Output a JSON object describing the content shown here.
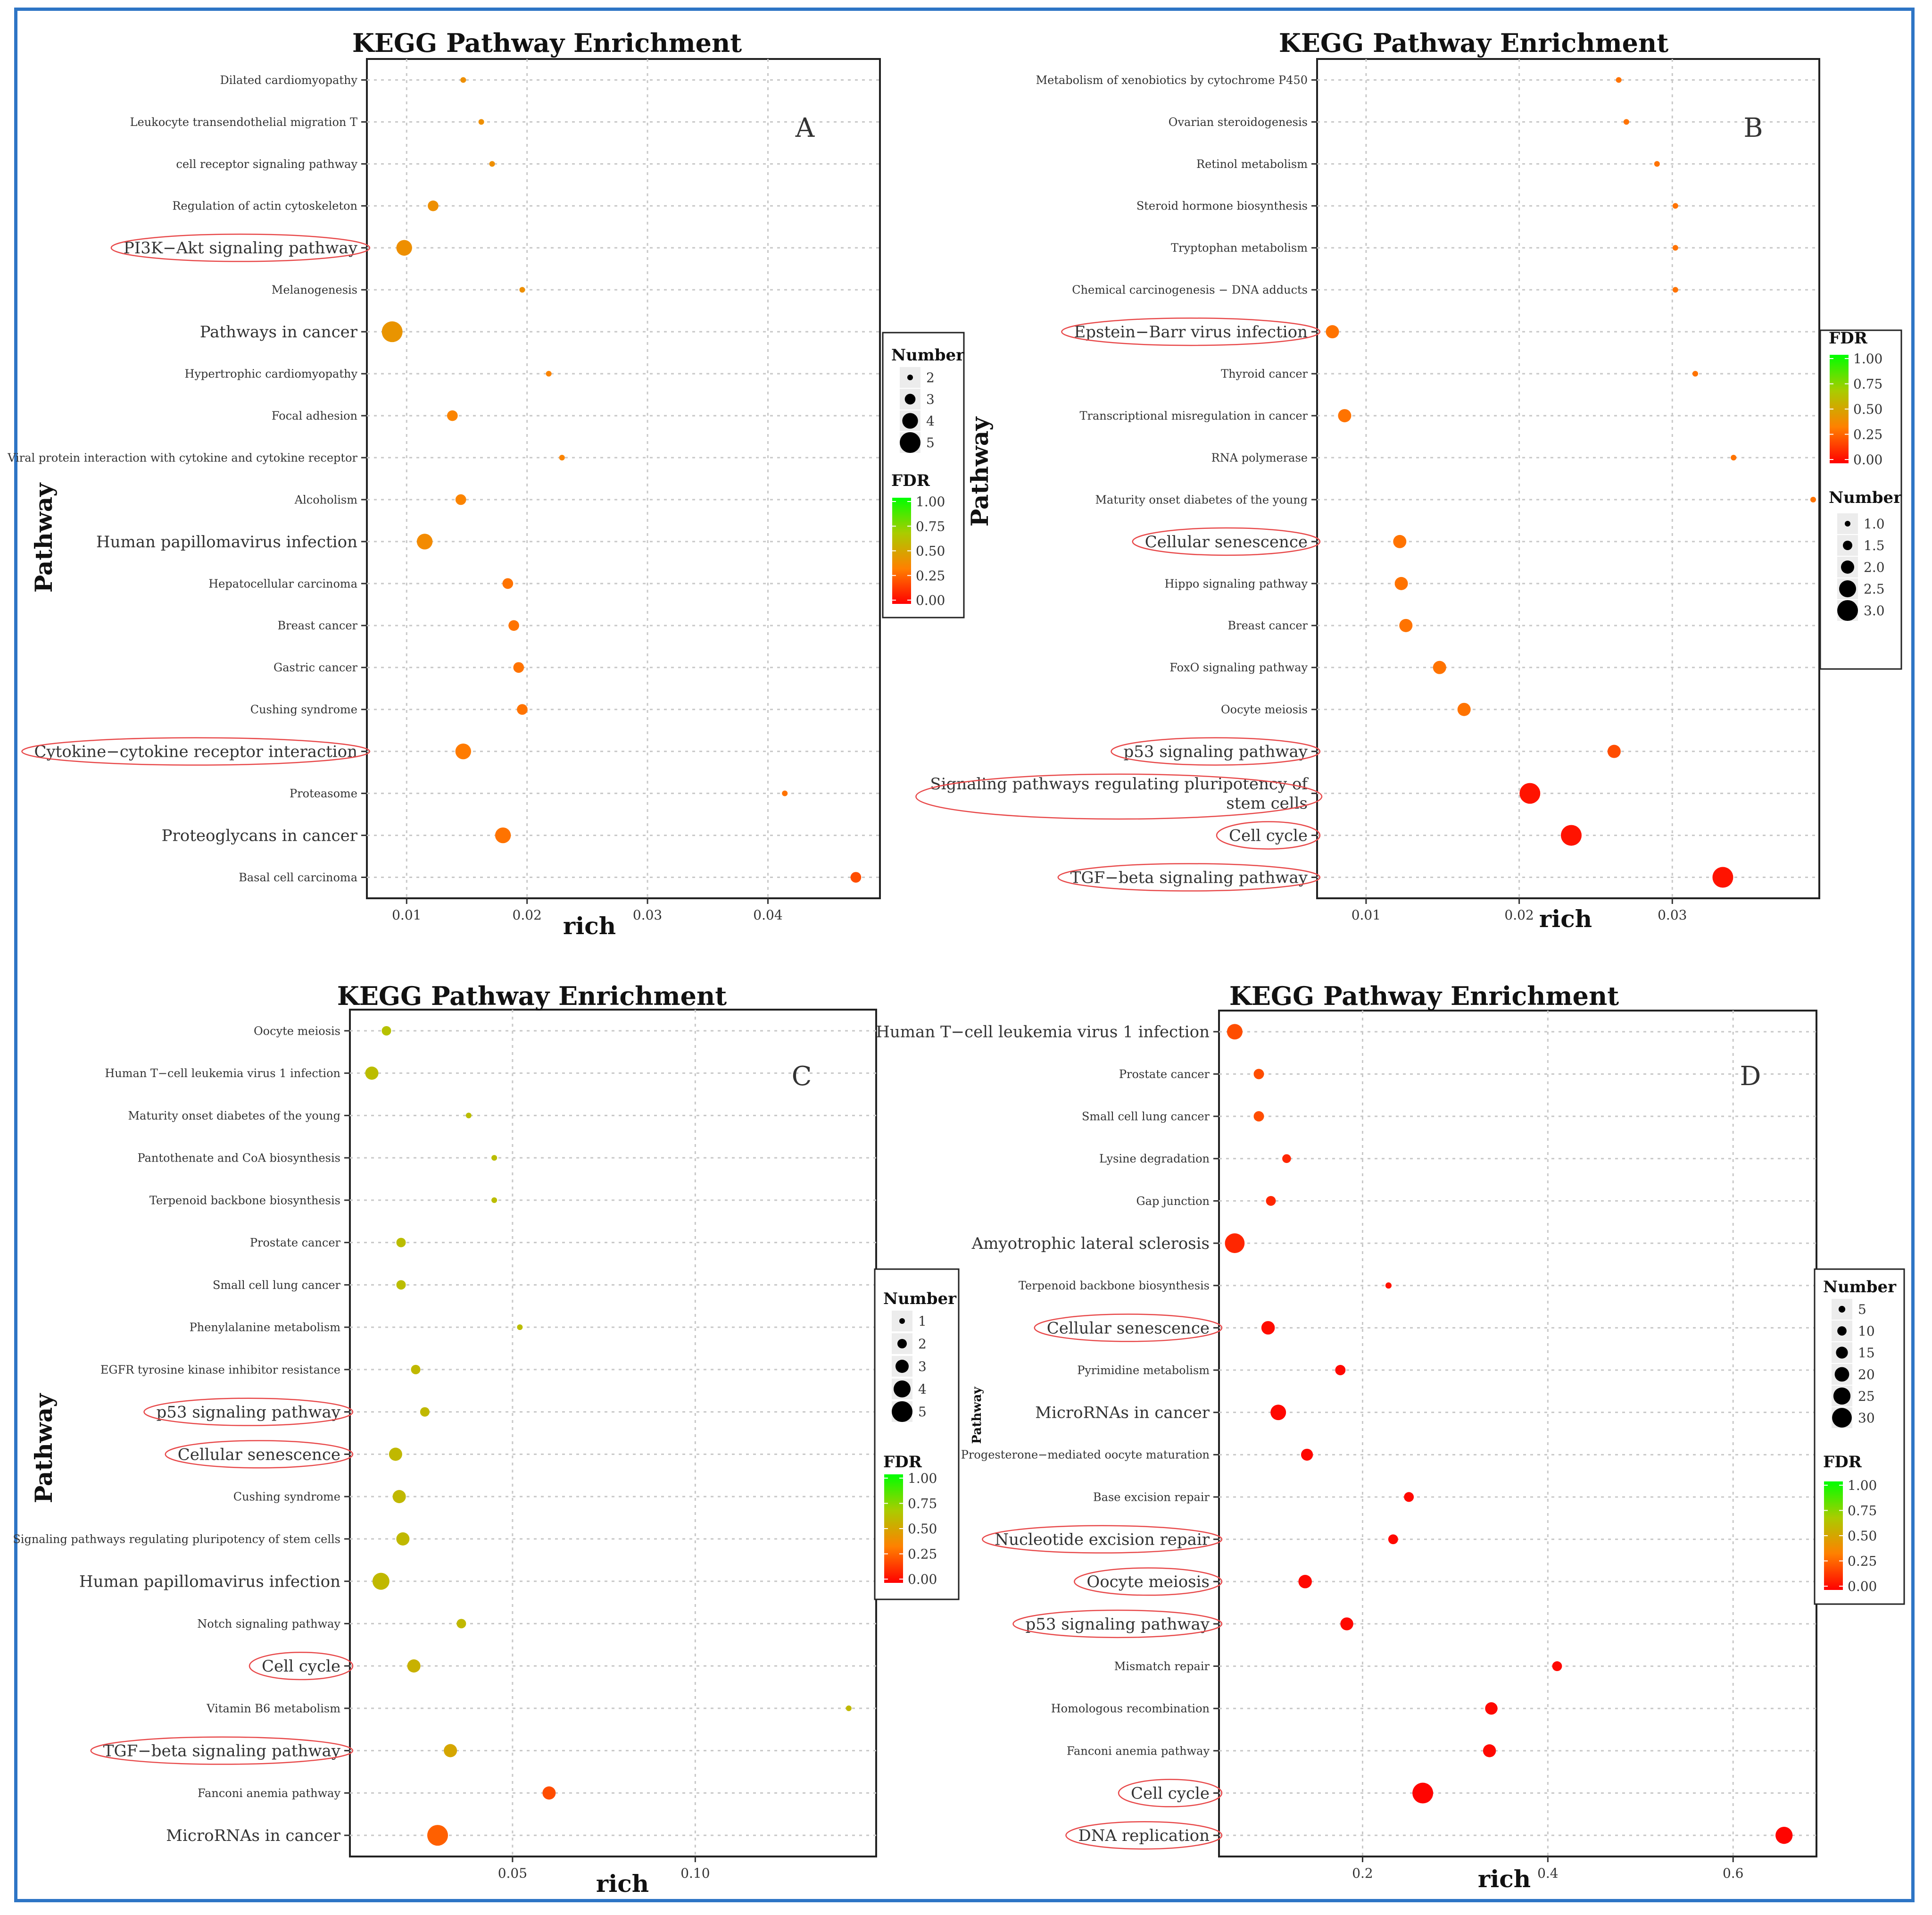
{
  "figure": {
    "border_color": "#2e75c5",
    "dot_color_scale": [
      "#ff0000",
      "#ff8000",
      "#aacc00",
      "#00ff00"
    ]
  },
  "chart_data": [
    {
      "type": "scatter",
      "panel_letter": "A",
      "title": "KEGG Pathway Enrichment",
      "xlabel": "rich",
      "ylabel": "Pathway",
      "xlim": [
        0.0067,
        0.0493
      ],
      "xticks": [
        0.01,
        0.02,
        0.03,
        0.04
      ],
      "xtick_labels": [
        "0.01",
        "0.02",
        "0.03",
        "0.04"
      ],
      "size_legend_title": "Number",
      "size_legend_values": [
        2,
        3,
        4,
        5
      ],
      "size_legend_labels": [
        "2",
        "3",
        "4",
        "5"
      ],
      "fdr_legend_title": "FDR",
      "fdr_legend_labels": [
        "1.00",
        "0.75",
        "0.50",
        "0.25",
        "0.00"
      ],
      "size_range": [
        2,
        5
      ],
      "circled": [
        "PI3K−Akt signaling pathway",
        "Cytokine−cytokine receptor interaction"
      ],
      "points": [
        {
          "pathway": "Dilated cardiomyopathy",
          "rich": 0.0147,
          "number": 2,
          "fdr": 0.4
        },
        {
          "pathway": "Leukocyte transendothelial migration T",
          "rich": 0.0162,
          "number": 2,
          "fdr": 0.4
        },
        {
          "pathway": "cell receptor signaling pathway",
          "rich": 0.0171,
          "number": 2,
          "fdr": 0.4
        },
        {
          "pathway": "Regulation of actin cytoskeleton",
          "rich": 0.0122,
          "number": 3,
          "fdr": 0.4
        },
        {
          "pathway": "PI3K−Akt signaling pathway",
          "rich": 0.0098,
          "number": 4,
          "fdr": 0.4
        },
        {
          "pathway": "Melanogenesis",
          "rich": 0.0196,
          "number": 2,
          "fdr": 0.4
        },
        {
          "pathway": "Pathways in cancer",
          "rich": 0.0088,
          "number": 5,
          "fdr": 0.42
        },
        {
          "pathway": "Hypertrophic cardiomyopathy",
          "rich": 0.0218,
          "number": 2,
          "fdr": 0.35
        },
        {
          "pathway": "Focal adhesion",
          "rich": 0.0138,
          "number": 3,
          "fdr": 0.35
        },
        {
          "pathway": "Viral protein interaction with cytokine and cytokine receptor",
          "rich": 0.0229,
          "number": 2,
          "fdr": 0.35
        },
        {
          "pathway": "Alcoholism",
          "rich": 0.0145,
          "number": 3,
          "fdr": 0.35
        },
        {
          "pathway": "Human papillomavirus infection",
          "rich": 0.0115,
          "number": 4,
          "fdr": 0.38
        },
        {
          "pathway": "Hepatocellular carcinoma",
          "rich": 0.0184,
          "number": 3,
          "fdr": 0.3
        },
        {
          "pathway": "Breast cancer",
          "rich": 0.0189,
          "number": 3,
          "fdr": 0.3
        },
        {
          "pathway": "Gastric cancer",
          "rich": 0.0193,
          "number": 3,
          "fdr": 0.3
        },
        {
          "pathway": "Cushing syndrome",
          "rich": 0.0196,
          "number": 3,
          "fdr": 0.3
        },
        {
          "pathway": "Cytokine−cytokine receptor interaction",
          "rich": 0.0147,
          "number": 4,
          "fdr": 0.32
        },
        {
          "pathway": "Proteasome",
          "rich": 0.0414,
          "number": 2,
          "fdr": 0.3
        },
        {
          "pathway": "Proteoglycans in cancer",
          "rich": 0.018,
          "number": 4,
          "fdr": 0.3
        },
        {
          "pathway": "Basal cell carcinoma",
          "rich": 0.0473,
          "number": 3,
          "fdr": 0.2
        }
      ]
    },
    {
      "type": "scatter",
      "panel_letter": "B",
      "title": "KEGG Pathway Enrichment",
      "xlabel": "rich",
      "ylabel": "Pathway",
      "xlim": [
        0.0068,
        0.0396
      ],
      "xticks": [
        0.01,
        0.02,
        0.03
      ],
      "xtick_labels": [
        "0.01",
        "0.02",
        "0.03"
      ],
      "size_legend_title": "Number",
      "size_legend_values": [
        1.0,
        1.5,
        2.0,
        2.5,
        3.0
      ],
      "size_legend_labels": [
        "1.0",
        "1.5",
        "2.0",
        "2.5",
        "3.0"
      ],
      "fdr_legend_title": "FDR",
      "fdr_legend_labels": [
        "1.00",
        "0.75",
        "0.50",
        "0.25",
        "0.00"
      ],
      "size_range": [
        1,
        3
      ],
      "circled": [
        "Epstein−Barr virus infection",
        "Cellular senescence",
        "p53 signaling pathway",
        "Signaling pathways regulating pluripotency of stem cells",
        "Cell cycle",
        "TGF−beta signaling pathway"
      ],
      "points": [
        {
          "pathway": "Metabolism of xenobiotics by cytochrome P450",
          "rich": 0.0265,
          "number": 1,
          "fdr": 0.3
        },
        {
          "pathway": "Ovarian steroidogenesis",
          "rich": 0.027,
          "number": 1,
          "fdr": 0.3
        },
        {
          "pathway": "Retinol metabolism",
          "rich": 0.029,
          "number": 1,
          "fdr": 0.3
        },
        {
          "pathway": "Steroid hormone biosynthesis",
          "rich": 0.0302,
          "number": 1,
          "fdr": 0.3
        },
        {
          "pathway": "Tryptophan metabolism",
          "rich": 0.0302,
          "number": 1,
          "fdr": 0.3
        },
        {
          "pathway": "Chemical carcinogenesis − DNA adducts",
          "rich": 0.0302,
          "number": 1,
          "fdr": 0.3
        },
        {
          "pathway": "Epstein−Barr virus infection",
          "rich": 0.0078,
          "number": 2,
          "fdr": 0.3
        },
        {
          "pathway": "Thyroid cancer",
          "rich": 0.0315,
          "number": 1,
          "fdr": 0.3
        },
        {
          "pathway": "Transcriptional misregulation in cancer",
          "rich": 0.0086,
          "number": 2,
          "fdr": 0.3
        },
        {
          "pathway": "RNA polymerase",
          "rich": 0.034,
          "number": 1,
          "fdr": 0.3
        },
        {
          "pathway": "Maturity onset diabetes of the young",
          "rich": 0.0392,
          "number": 1,
          "fdr": 0.3
        },
        {
          "pathway": "Cellular senescence",
          "rich": 0.0122,
          "number": 2,
          "fdr": 0.3
        },
        {
          "pathway": "Hippo signaling pathway",
          "rich": 0.0123,
          "number": 2,
          "fdr": 0.3
        },
        {
          "pathway": "Breast cancer",
          "rich": 0.0126,
          "number": 2,
          "fdr": 0.3
        },
        {
          "pathway": "FoxO signaling pathway",
          "rich": 0.0148,
          "number": 2,
          "fdr": 0.3
        },
        {
          "pathway": "Oocyte meiosis",
          "rich": 0.0164,
          "number": 2,
          "fdr": 0.3
        },
        {
          "pathway": "p53 signaling pathway",
          "rich": 0.0262,
          "number": 2,
          "fdr": 0.2
        },
        {
          "pathway": "Signaling pathways regulating pluripotency of stem cells",
          "rich": 0.0207,
          "number": 3,
          "fdr": 0.05
        },
        {
          "pathway": "Cell cycle",
          "rich": 0.0234,
          "number": 3,
          "fdr": 0.05
        },
        {
          "pathway": "TGF−beta signaling pathway",
          "rich": 0.0333,
          "number": 3,
          "fdr": 0.05
        }
      ]
    },
    {
      "type": "scatter",
      "panel_letter": "C",
      "title": "KEGG Pathway Enrichment",
      "xlabel": "rich",
      "ylabel": "Pathway",
      "xlim": [
        0.0055,
        0.1495
      ],
      "xticks": [
        0.05,
        0.1
      ],
      "xtick_labels": [
        "0.05",
        "0.10"
      ],
      "size_legend_title": "Number",
      "size_legend_values": [
        1,
        2,
        3,
        4,
        5
      ],
      "size_legend_labels": [
        "1",
        "2",
        "3",
        "4",
        "5"
      ],
      "fdr_legend_title": "FDR",
      "fdr_legend_labels": [
        "1.00",
        "0.75",
        "0.50",
        "0.25",
        "0.00"
      ],
      "size_range": [
        1,
        5
      ],
      "circled": [
        "p53 signaling pathway",
        "Cellular senescence",
        "Cell cycle",
        "TGF−beta signaling pathway"
      ],
      "points": [
        {
          "pathway": "Oocyte meiosis",
          "rich": 0.0155,
          "number": 2,
          "fdr": 0.62
        },
        {
          "pathway": "Human T−cell leukemia virus 1 infection",
          "rich": 0.0115,
          "number": 3,
          "fdr": 0.6
        },
        {
          "pathway": "Maturity onset diabetes of the young",
          "rich": 0.038,
          "number": 1,
          "fdr": 0.6
        },
        {
          "pathway": "Pantothenate and CoA biosynthesis",
          "rich": 0.045,
          "number": 1,
          "fdr": 0.6
        },
        {
          "pathway": "Terpenoid backbone biosynthesis",
          "rich": 0.045,
          "number": 1,
          "fdr": 0.6
        },
        {
          "pathway": "Prostate cancer",
          "rich": 0.0195,
          "number": 2,
          "fdr": 0.6
        },
        {
          "pathway": "Small cell lung cancer",
          "rich": 0.0195,
          "number": 2,
          "fdr": 0.6
        },
        {
          "pathway": "Phenylalanine metabolism",
          "rich": 0.052,
          "number": 1,
          "fdr": 0.6
        },
        {
          "pathway": "EGFR tyrosine kinase inhibitor resistance",
          "rich": 0.0235,
          "number": 2,
          "fdr": 0.58
        },
        {
          "pathway": "p53 signaling pathway",
          "rich": 0.026,
          "number": 2,
          "fdr": 0.58
        },
        {
          "pathway": "Cellular senescence",
          "rich": 0.018,
          "number": 3,
          "fdr": 0.58
        },
        {
          "pathway": "Cushing syndrome",
          "rich": 0.019,
          "number": 3,
          "fdr": 0.58
        },
        {
          "pathway": "Signaling pathways regulating pluripotency of stem cells",
          "rich": 0.02,
          "number": 3,
          "fdr": 0.58
        },
        {
          "pathway": "Human papillomavirus infection",
          "rich": 0.014,
          "number": 4,
          "fdr": 0.58
        },
        {
          "pathway": "Notch signaling pathway",
          "rich": 0.036,
          "number": 2,
          "fdr": 0.58
        },
        {
          "pathway": "Cell cycle",
          "rich": 0.023,
          "number": 3,
          "fdr": 0.55
        },
        {
          "pathway": "Vitamin B6 metabolism",
          "rich": 0.142,
          "number": 1,
          "fdr": 0.58
        },
        {
          "pathway": "TGF−beta signaling pathway",
          "rich": 0.033,
          "number": 3,
          "fdr": 0.5
        },
        {
          "pathway": "Fanconi anemia pathway",
          "rich": 0.06,
          "number": 3,
          "fdr": 0.2
        },
        {
          "pathway": "MicroRNAs in cancer",
          "rich": 0.0295,
          "number": 5,
          "fdr": 0.25
        }
      ]
    },
    {
      "type": "scatter",
      "panel_letter": "D",
      "title": "KEGG Pathway Enrichment",
      "xlabel": "rich",
      "ylabel": "Pathway",
      "xlim": [
        0.045,
        0.69
      ],
      "xticks": [
        0.2,
        0.4,
        0.6
      ],
      "xtick_labels": [
        "0.2",
        "0.4",
        "0.6"
      ],
      "size_legend_title": "Number",
      "size_legend_values": [
        5,
        10,
        15,
        20,
        25,
        30
      ],
      "size_legend_labels": [
        "5",
        "10",
        "15",
        "20",
        "25",
        "30"
      ],
      "fdr_legend_title": "FDR",
      "fdr_legend_labels": [
        "1.00",
        "0.75",
        "0.50",
        "0.25",
        "0.00"
      ],
      "size_range": [
        3,
        32
      ],
      "circled": [
        "Cellular senescence",
        "Nucleotide excision repair",
        "Oocyte meiosis",
        "p53 signaling pathway",
        "Cell cycle",
        "DNA replication"
      ],
      "points": [
        {
          "pathway": "Human T−cell leukemia virus 1 infection",
          "rich": 0.062,
          "number": 22,
          "fdr": 0.2
        },
        {
          "pathway": "Prostate cancer",
          "rich": 0.088,
          "number": 12,
          "fdr": 0.2
        },
        {
          "pathway": "Small cell lung cancer",
          "rich": 0.088,
          "number": 12,
          "fdr": 0.2
        },
        {
          "pathway": "Lysine degradation",
          "rich": 0.118,
          "number": 9,
          "fdr": 0.1
        },
        {
          "pathway": "Gap junction",
          "rich": 0.101,
          "number": 11,
          "fdr": 0.1
        },
        {
          "pathway": "Amyotrophic lateral sclerosis",
          "rich": 0.062,
          "number": 30,
          "fdr": 0.1
        },
        {
          "pathway": "Terpenoid backbone biosynthesis",
          "rich": 0.228,
          "number": 4,
          "fdr": 0.05
        },
        {
          "pathway": "Cellular senescence",
          "rich": 0.098,
          "number": 18,
          "fdr": 0.03
        },
        {
          "pathway": "Pyrimidine metabolism",
          "rich": 0.176,
          "number": 12,
          "fdr": 0.02
        },
        {
          "pathway": "MicroRNAs in cancer",
          "rich": 0.109,
          "number": 22,
          "fdr": 0.02
        },
        {
          "pathway": "Progesterone−mediated oocyte maturation",
          "rich": 0.14,
          "number": 15,
          "fdr": 0.02
        },
        {
          "pathway": "Base excision repair",
          "rich": 0.25,
          "number": 11,
          "fdr": 0.02
        },
        {
          "pathway": "Nucleotide excision repair",
          "rich": 0.233,
          "number": 11,
          "fdr": 0.02
        },
        {
          "pathway": "Oocyte meiosis",
          "rich": 0.138,
          "number": 18,
          "fdr": 0.02
        },
        {
          "pathway": "p53 signaling pathway",
          "rich": 0.183,
          "number": 17,
          "fdr": 0.02
        },
        {
          "pathway": "Mismatch repair",
          "rich": 0.41,
          "number": 11,
          "fdr": 0.02
        },
        {
          "pathway": "Homologous recombination",
          "rich": 0.339,
          "number": 16,
          "fdr": 0.02
        },
        {
          "pathway": "Fanconi anemia pathway",
          "rich": 0.337,
          "number": 17,
          "fdr": 0.02
        },
        {
          "pathway": "Cell cycle",
          "rich": 0.265,
          "number": 32,
          "fdr": 0.01
        },
        {
          "pathway": "DNA replication",
          "rich": 0.655,
          "number": 25,
          "fdr": 0.01
        }
      ]
    }
  ]
}
